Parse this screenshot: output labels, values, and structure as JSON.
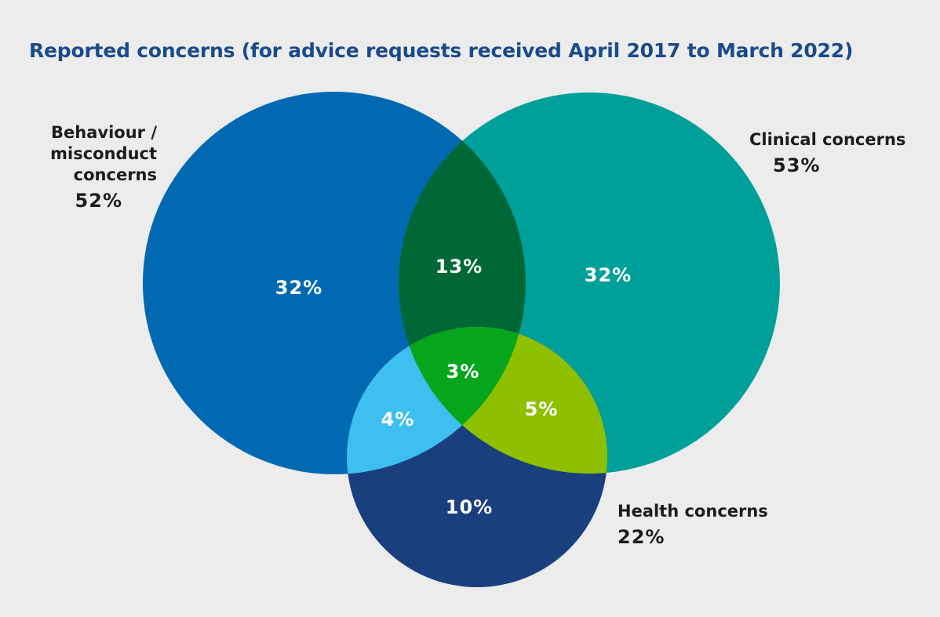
{
  "title": "Reported concerns (for advice requests received April 2017 to March 2022)",
  "sets": {
    "behaviour": {
      "name_lines": [
        "Behaviour /",
        "misconduct",
        "concerns"
      ],
      "total": "52%",
      "color": "#0169b2"
    },
    "clinical": {
      "name": "Clinical concerns",
      "total": "53%",
      "color": "#00a09a"
    },
    "health": {
      "name": "Health concerns",
      "total": "22%",
      "color": "#193f7e"
    }
  },
  "regions": {
    "behaviour_only": {
      "label": "32%",
      "color": "#0169b2"
    },
    "clinical_only": {
      "label": "32%",
      "color": "#00a09a"
    },
    "health_only": {
      "label": "10%",
      "color": "#193f7e"
    },
    "behaviour_clinical": {
      "label": "13%",
      "color": "#006837"
    },
    "behaviour_health": {
      "label": "4%",
      "color": "#3dbfef"
    },
    "clinical_health": {
      "label": "5%",
      "color": "#8fc000"
    },
    "all_three": {
      "label": "3%",
      "color": "#05a51e"
    }
  }
}
